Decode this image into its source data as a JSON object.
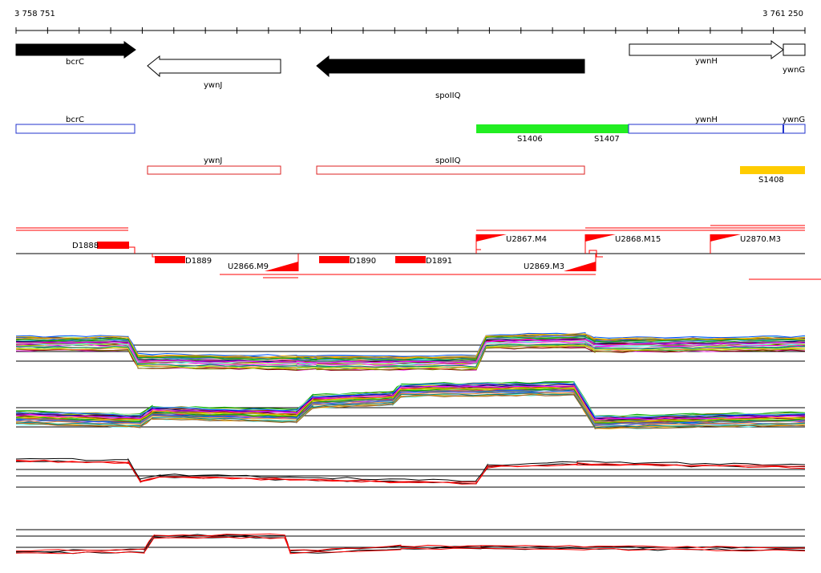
{
  "ruler": {
    "start": "3 758 751",
    "end": "3 761 250"
  },
  "genes": [
    {
      "name": "bcrC",
      "strand": "+",
      "filled": true
    },
    {
      "name": "ywnJ",
      "strand": "-",
      "filled": false
    },
    {
      "name": "spoIIQ",
      "strand": "-",
      "filled": true
    },
    {
      "name": "ywnH",
      "strand": "+",
      "filled": false
    },
    {
      "name": "ywnG",
      "strand": "+",
      "filled": false
    }
  ],
  "annotation_boxes_top": [
    {
      "label": "bcrC",
      "color": "#2233cc"
    },
    {
      "label": "ywnH",
      "color": "#2233cc"
    },
    {
      "label": "ywnG",
      "color": "#2233cc"
    }
  ],
  "annotation_boxes_bottom": [
    {
      "label": "ywnJ",
      "color": "#dd2222"
    },
    {
      "label": "spoIIQ",
      "color": "#dd2222"
    }
  ],
  "regions": [
    {
      "label": "S1406",
      "color": "#22ee22"
    },
    {
      "label": "S1407",
      "color": "#22ee22"
    },
    {
      "label": "S1408",
      "color": "#ffcc00"
    }
  ],
  "down_features": [
    "D1888",
    "D1889",
    "D1890",
    "D1891"
  ],
  "up_features": [
    "U2866.M9",
    "U2867.M4",
    "U2868.M15",
    "U2869.M3",
    "U2870.M3"
  ],
  "colors": {
    "feature_red": "#ff0000",
    "axis": "#000000"
  }
}
